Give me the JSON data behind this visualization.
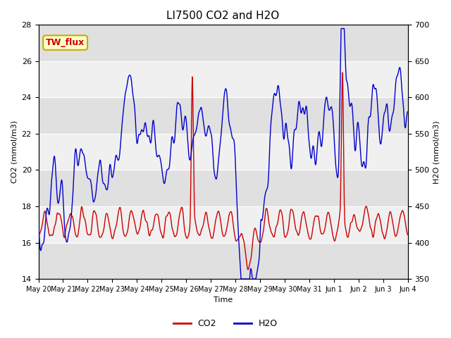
{
  "title": "LI7500 CO2 and H2O",
  "xlabel": "Time",
  "ylabel_left": "CO2 (mmol/m3)",
  "ylabel_right": "H2O (mmol/m3)",
  "ylim_left": [
    14,
    28
  ],
  "ylim_right": [
    350,
    700
  ],
  "yticks_left": [
    14,
    16,
    18,
    20,
    22,
    24,
    26,
    28
  ],
  "yticks_right": [
    350,
    400,
    450,
    500,
    550,
    600,
    650,
    700
  ],
  "xtick_labels": [
    "May 20",
    "May 21",
    "May 22",
    "May 23",
    "May 24",
    "May 25",
    "May 26",
    "May 27",
    "May 28",
    "May 29",
    "May 30",
    "May 31",
    "Jun 1",
    "Jun 2",
    "Jun 3",
    "Jun 4"
  ],
  "co2_color": "#cc0000",
  "h2o_color": "#0000cc",
  "legend_box_facecolor": "#ffffcc",
  "legend_box_edgecolor": "#ccaa00",
  "annotation_text": "TW_flux",
  "annotation_color": "#cc0000",
  "background_color": "#ffffff",
  "plot_bg_color": "#e0e0e0",
  "white_band_color": "#f0f0f0",
  "linewidth": 1.0,
  "title_fontsize": 11,
  "label_fontsize": 8,
  "tick_fontsize": 8,
  "legend_fontsize": 9
}
